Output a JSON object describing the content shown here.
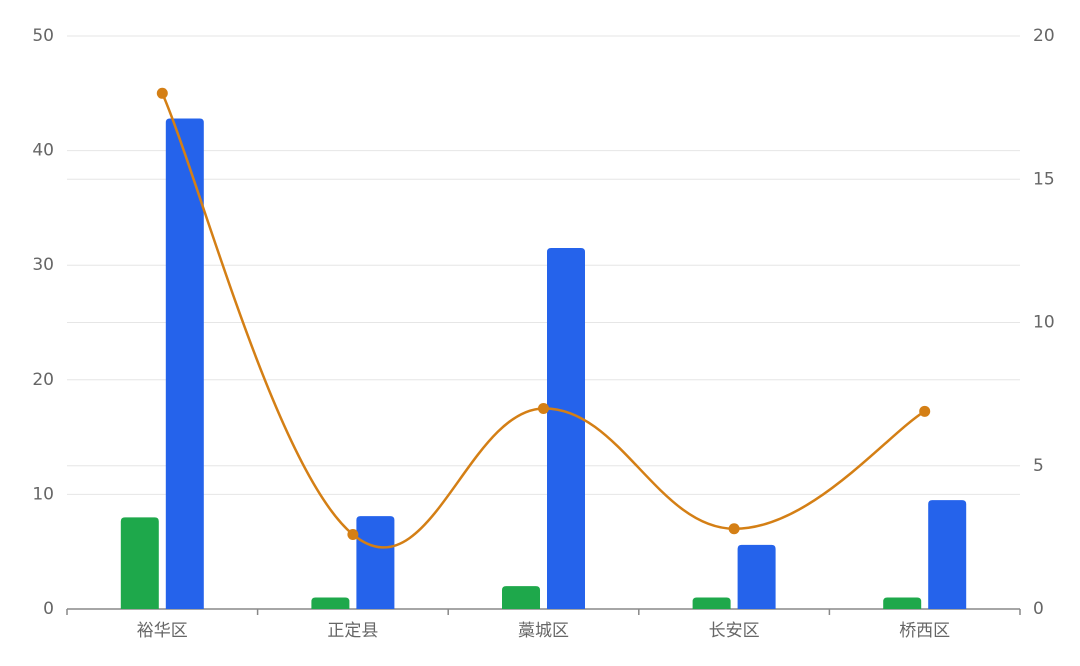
{
  "chart_data": {
    "type": "bar",
    "categories": [
      "裕华区",
      "正定县",
      "藁城区",
      "长安区",
      "桥西区"
    ],
    "series": [
      {
        "color": "#1ea84b",
        "values": [
          8,
          1,
          2,
          1,
          1
        ]
      },
      {
        "color": "#2563eb",
        "values": [
          42.8,
          8.1,
          31.5,
          5.6,
          9.5
        ]
      },
      {
        "type": "line",
        "axis": "y2",
        "color": "#d47f15",
        "values": [
          18,
          2.6,
          7,
          2.8,
          6.9
        ]
      }
    ],
    "ylim": [
      0,
      50
    ],
    "yticks": [
      0,
      10,
      20,
      30,
      40,
      50
    ],
    "y2lim": [
      0,
      20
    ],
    "y2ticks": [
      0,
      5,
      10,
      15,
      20
    ],
    "grid": true
  }
}
